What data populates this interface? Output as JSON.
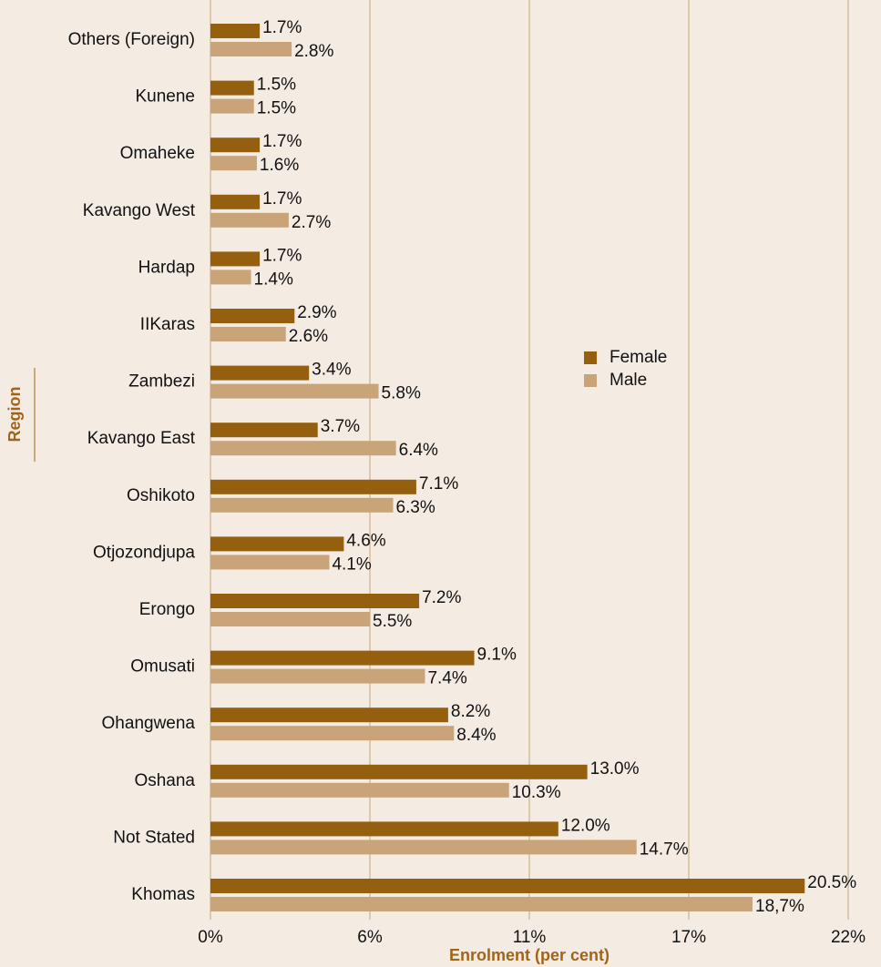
{
  "chart_data": {
    "type": "barh",
    "x_label": "Enrolment (per cent)",
    "y_label": "Region",
    "categories": [
      "Others (Foreign)",
      "Kunene",
      "Omaheke",
      "Kavango West",
      "Hardap",
      "IIKaras",
      "Zambezi",
      "Kavango East",
      "Oshikoto",
      "Otjozondjupa",
      "Erongo",
      "Omusati",
      "Ohangwena",
      "Oshana",
      "Not Stated",
      "Khomas"
    ],
    "series": [
      {
        "name": "Female",
        "color": "#94600f",
        "values": [
          1.7,
          1.5,
          1.7,
          1.7,
          1.7,
          2.9,
          3.4,
          3.7,
          7.1,
          4.6,
          7.2,
          9.1,
          8.2,
          13.0,
          12.0,
          20.5
        ],
        "value_labels": [
          "1.7%",
          "1.5%",
          "1.7%",
          "1.7%",
          "1.7%",
          "2.9%",
          "3.4%",
          "3.7%",
          "7.1%",
          "4.6%",
          "7.2%",
          "9.1%",
          "8.2%",
          "13.0%",
          "12.0%",
          "20.5%"
        ]
      },
      {
        "name": "Male",
        "color": "#c9a479",
        "values": [
          2.8,
          1.5,
          1.6,
          2.7,
          1.4,
          2.6,
          5.8,
          6.4,
          6.3,
          4.1,
          5.5,
          7.4,
          8.4,
          10.3,
          14.7,
          18.7
        ],
        "value_labels": [
          "2.8%",
          "1.5%",
          "1.6%",
          "2.7%",
          "1.4%",
          "2.6%",
          "5.8%",
          "6.4%",
          "6.3%",
          "4.1%",
          "5.5%",
          "7.4%",
          "8.4%",
          "10.3%",
          "14.7%",
          "18,7%"
        ]
      }
    ],
    "xlim": [
      0,
      22
    ],
    "xticks": [
      {
        "value": 0,
        "label": "0%"
      },
      {
        "value": 5.5,
        "label": "6%"
      },
      {
        "value": 11,
        "label": "11%"
      },
      {
        "value": 16.5,
        "label": "17%"
      },
      {
        "value": 22,
        "label": "22%"
      }
    ],
    "grid": true
  }
}
